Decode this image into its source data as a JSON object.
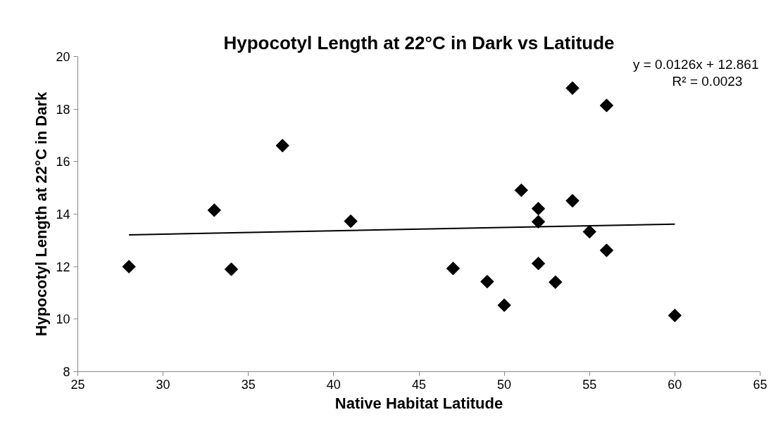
{
  "chart_data": {
    "type": "scatter",
    "title": "Hypocotyl Length at 22°C in Dark vs Latitude",
    "xlabel": "Native Habitat Latitude",
    "ylabel": "Hypocotyl Length at 22°C in Dark",
    "series": [
      {
        "color": "#000000",
        "marker": "diamond",
        "x": [
          28,
          33,
          34,
          37,
          41,
          47,
          49,
          50,
          51,
          52,
          52,
          52,
          53,
          54,
          54,
          55,
          56,
          56,
          60
        ],
        "values": [
          12.0,
          14.15,
          11.9,
          16.61,
          13.73,
          11.93,
          11.43,
          10.53,
          14.91,
          14.21,
          13.71,
          12.12,
          11.41,
          18.8,
          14.51,
          13.33,
          18.14,
          12.62,
          10.14
        ]
      },
      {
        "type": "line",
        "color": "#000000",
        "marker": "none",
        "x": [
          28,
          60
        ],
        "values": [
          13.21,
          13.62
        ]
      }
    ],
    "annotations": [
      "y = 0.0126x + 12.861",
      "R² = 0.0023"
    ],
    "xlim": [
      25,
      65
    ],
    "xticks": [
      25,
      30,
      35,
      40,
      45,
      50,
      55,
      60,
      65
    ],
    "ylim": [
      8,
      20
    ],
    "yticks": [
      8,
      10,
      12,
      14,
      16,
      18,
      20
    ],
    "grid": false
  }
}
